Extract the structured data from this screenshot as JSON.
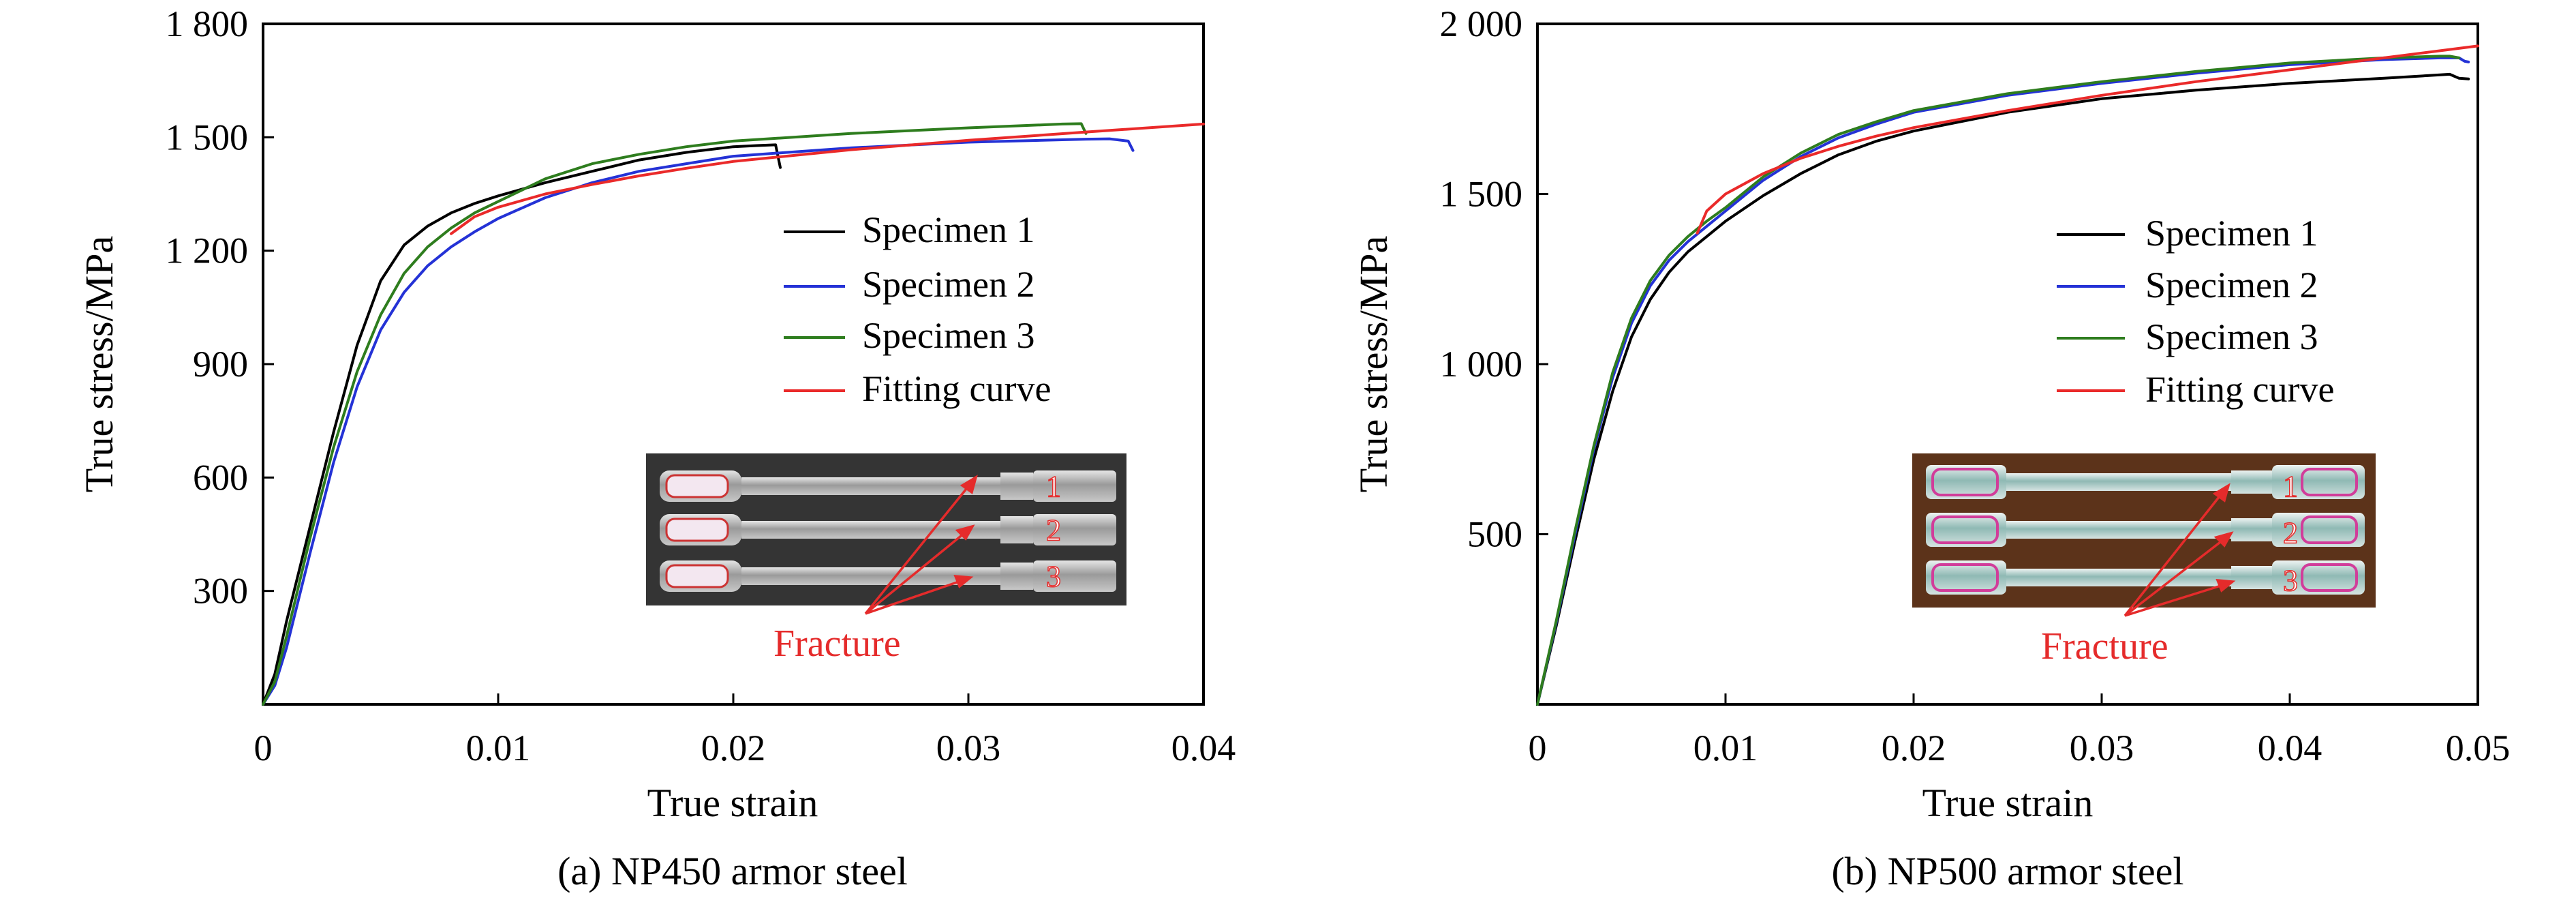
{
  "chart_data": [
    {
      "type": "line",
      "caption": "(a) NP450 armor steel",
      "xlabel": "True strain",
      "ylabel": "True stress/MPa",
      "xlim": [
        0,
        0.04
      ],
      "ylim": [
        0,
        1800
      ],
      "x_ticks": [
        0,
        0.01,
        0.02,
        0.03,
        0.04
      ],
      "x_tick_labels": [
        "0",
        "0.01",
        "0.02",
        "0.03",
        "0.04"
      ],
      "y_ticks": [
        300,
        600,
        900,
        1200,
        1500,
        1800
      ],
      "y_tick_labels": [
        "300",
        "600",
        "900",
        "1 200",
        "1 500",
        "1 800"
      ],
      "grid": false,
      "legend_position": "right",
      "series": [
        {
          "name": "Specimen 1",
          "color": "#000000",
          "x": [
            0,
            0.0005,
            0.001,
            0.002,
            0.003,
            0.004,
            0.005,
            0.006,
            0.007,
            0.008,
            0.009,
            0.01,
            0.012,
            0.014,
            0.016,
            0.018,
            0.02,
            0.021,
            0.0218,
            0.022
          ],
          "y": [
            0,
            80,
            220,
            470,
            720,
            950,
            1120,
            1215,
            1265,
            1300,
            1325,
            1345,
            1380,
            1410,
            1440,
            1460,
            1475,
            1478,
            1480,
            1420
          ]
        },
        {
          "name": "Specimen 2",
          "color": "#2432d6",
          "x": [
            0,
            0.0005,
            0.001,
            0.002,
            0.003,
            0.004,
            0.005,
            0.006,
            0.007,
            0.008,
            0.009,
            0.01,
            0.012,
            0.014,
            0.016,
            0.018,
            0.02,
            0.025,
            0.03,
            0.035,
            0.036,
            0.0368,
            0.037
          ],
          "y": [
            0,
            50,
            150,
            400,
            640,
            840,
            990,
            1090,
            1160,
            1210,
            1250,
            1285,
            1340,
            1380,
            1410,
            1430,
            1450,
            1472,
            1487,
            1495,
            1496,
            1490,
            1465
          ]
        },
        {
          "name": "Specimen 3",
          "color": "#2e7d1e",
          "x": [
            0,
            0.0005,
            0.001,
            0.002,
            0.003,
            0.004,
            0.005,
            0.006,
            0.007,
            0.008,
            0.009,
            0.01,
            0.012,
            0.014,
            0.016,
            0.018,
            0.02,
            0.025,
            0.03,
            0.034,
            0.0348,
            0.035
          ],
          "y": [
            0,
            60,
            180,
            440,
            680,
            880,
            1030,
            1140,
            1210,
            1260,
            1300,
            1330,
            1390,
            1430,
            1455,
            1475,
            1490,
            1510,
            1525,
            1535,
            1536,
            1510
          ]
        },
        {
          "name": "Fitting curve",
          "color": "#ea2a2a",
          "x": [
            0.008,
            0.009,
            0.01,
            0.012,
            0.014,
            0.016,
            0.018,
            0.02,
            0.025,
            0.03,
            0.035,
            0.04
          ],
          "y": [
            1245,
            1290,
            1315,
            1350,
            1375,
            1398,
            1418,
            1436,
            1467,
            1492,
            1514,
            1535
          ]
        }
      ],
      "inset": {
        "photo_labels": [
          "1",
          "2",
          "3"
        ],
        "annotation": "Fracture",
        "annotation_color": "#e52b2b"
      }
    },
    {
      "type": "line",
      "caption": "(b) NP500 armor steel",
      "xlabel": "True strain",
      "ylabel": "True stress/MPa",
      "xlim": [
        0,
        0.05
      ],
      "ylim": [
        0,
        2000
      ],
      "x_ticks": [
        0,
        0.01,
        0.02,
        0.03,
        0.04,
        0.05
      ],
      "x_tick_labels": [
        "0",
        "0.01",
        "0.02",
        "0.03",
        "0.04",
        "0.05"
      ],
      "y_ticks": [
        500,
        1000,
        1500,
        2000
      ],
      "y_tick_labels": [
        "500",
        "1 000",
        "1 500",
        "2 000"
      ],
      "grid": false,
      "legend_position": "right",
      "series": [
        {
          "name": "Specimen 1",
          "color": "#000000",
          "x": [
            0,
            0.001,
            0.002,
            0.003,
            0.004,
            0.005,
            0.006,
            0.007,
            0.008,
            0.009,
            0.01,
            0.012,
            0.014,
            0.016,
            0.018,
            0.02,
            0.025,
            0.03,
            0.035,
            0.04,
            0.045,
            0.048,
            0.0485,
            0.049,
            0.0495
          ],
          "y": [
            0,
            230,
            480,
            720,
            920,
            1080,
            1190,
            1270,
            1330,
            1375,
            1420,
            1495,
            1560,
            1615,
            1655,
            1685,
            1740,
            1780,
            1805,
            1825,
            1840,
            1850,
            1852,
            1840,
            1838
          ]
        },
        {
          "name": "Specimen 2",
          "color": "#2432d6",
          "x": [
            0,
            0.001,
            0.002,
            0.003,
            0.004,
            0.005,
            0.006,
            0.007,
            0.008,
            0.009,
            0.01,
            0.012,
            0.014,
            0.016,
            0.018,
            0.02,
            0.025,
            0.03,
            0.035,
            0.04,
            0.045,
            0.048,
            0.049,
            0.0493,
            0.0495
          ],
          "y": [
            0,
            240,
            500,
            750,
            960,
            1120,
            1230,
            1305,
            1360,
            1405,
            1450,
            1540,
            1610,
            1665,
            1705,
            1740,
            1790,
            1825,
            1855,
            1880,
            1895,
            1900,
            1900,
            1890,
            1888
          ]
        },
        {
          "name": "Specimen 3",
          "color": "#2e7d1e",
          "x": [
            0,
            0.001,
            0.002,
            0.003,
            0.004,
            0.005,
            0.006,
            0.007,
            0.008,
            0.009,
            0.01,
            0.012,
            0.014,
            0.016,
            0.018,
            0.02,
            0.025,
            0.03,
            0.035,
            0.04,
            0.045,
            0.048,
            0.0485,
            0.049
          ],
          "y": [
            0,
            245,
            510,
            760,
            975,
            1135,
            1245,
            1320,
            1375,
            1420,
            1460,
            1550,
            1620,
            1675,
            1712,
            1745,
            1795,
            1830,
            1860,
            1885,
            1900,
            1905,
            1905,
            1900
          ]
        },
        {
          "name": "Fitting curve",
          "color": "#ea2a2a",
          "x": [
            0.0085,
            0.009,
            0.01,
            0.012,
            0.014,
            0.016,
            0.018,
            0.02,
            0.025,
            0.03,
            0.035,
            0.04,
            0.045,
            0.05
          ],
          "y": [
            1385,
            1450,
            1500,
            1560,
            1605,
            1640,
            1670,
            1695,
            1745,
            1790,
            1830,
            1865,
            1900,
            1935
          ]
        }
      ],
      "inset": {
        "photo_labels": [
          "1",
          "2",
          "3"
        ],
        "annotation": "Fracture",
        "annotation_color": "#e52b2b"
      }
    }
  ]
}
